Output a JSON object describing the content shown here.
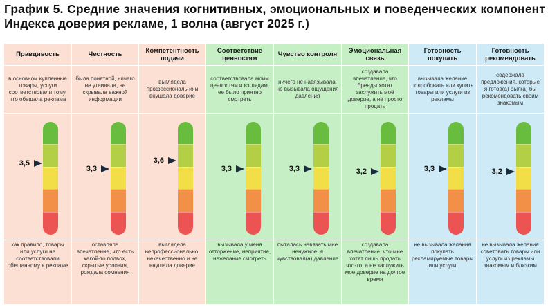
{
  "title": "График 5. Средние значения когнитивных, эмоциональных и поведенческих компонент Индекса доверия рекламе, 1 волна (август 2025 г.)",
  "colors": {
    "peach": "#fbe0d3",
    "green_light": "#c6efc6",
    "blue_light": "#cdeaf6",
    "scale": [
      "#69bd3e",
      "#b2cf45",
      "#f2df47",
      "#f29048",
      "#ec5353"
    ]
  },
  "chart_data": {
    "type": "scale",
    "scale_min": 1,
    "scale_max": 5,
    "categories": [
      "Правдивость",
      "Честность",
      "Компетентность подачи",
      "Соответствие ценностям",
      "Чувство контроля",
      "Эмоциональная связь",
      "Готовность покупать",
      "Готовность рекомендовать"
    ],
    "values": [
      3.5,
      3.3,
      3.6,
      3.3,
      3.3,
      3.2,
      3.3,
      3.2
    ],
    "value_labels": [
      "3,5",
      "3,3",
      "3,6",
      "3,3",
      "3,3",
      "3,2",
      "3,3",
      "3,2"
    ]
  },
  "columns": [
    {
      "header": "Правдивость",
      "top": "в основном купленные товары, услуги соответствовали тому, что обещала реклама",
      "bottom": "как правило, товары или услуги не соответствовали обещанному в рекламе",
      "bg": "peach"
    },
    {
      "header": "Честность",
      "top": "была понятной, ничего не утаивала, не скрывала важной информации",
      "bottom": "оставляла впечатление, что есть какой-то подвох, скрытые условия, рождала сомнения",
      "bg": "peach"
    },
    {
      "header": "Компетентность подачи",
      "top": "выглядела профессионально и внушала доверие",
      "bottom": "выглядела непрофессионально, некачественно и не внушала доверие",
      "bg": "peach"
    },
    {
      "header": "Соответствие ценностям",
      "top": "соответствовала моим ценностям и взглядам, ее было приятно смотреть",
      "bottom": "вызывала у меня отторжение, неприятие, нежелание смотреть",
      "bg": "green_light"
    },
    {
      "header": "Чувство контроля",
      "top": "ничего не навязывала, не вызывала ощущения давления",
      "bottom": "пыталась навязать мне ненужное, я чувствовал(а) давление",
      "bg": "green_light"
    },
    {
      "header": "Эмоциональная связь",
      "top": "создавала впечатление, что бренды хотят заслужить моё доверие, а не просто продать",
      "bottom": "создавала впечатление, что мне хотят лишь продать что-то, а не заслужить мое доверие на долгое время",
      "bg": "green_light"
    },
    {
      "header": "Готовность покупать",
      "top": "вызывала желание попробовать или купить товары или услуги из рекламы",
      "bottom": "не вызывала желания покупать рекламируемые товары или услуги",
      "bg": "blue_light"
    },
    {
      "header": "Готовность рекомендовать",
      "top": "содержала предложения, которые я готов(а) был(а) бы рекомендовать своим знакомым",
      "bottom": "не вызывала желания советовать товары или услуги из рекламы знакомым и близким",
      "bg": "blue_light"
    }
  ]
}
